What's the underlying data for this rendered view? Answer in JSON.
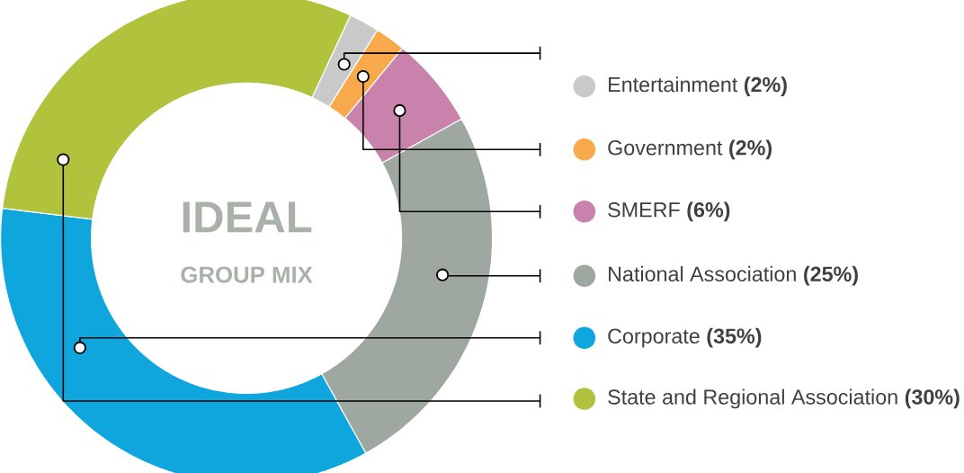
{
  "chart_data": {
    "type": "donut",
    "title": "IDEAL",
    "subtitle": "GROUP MIX",
    "categories": [
      "Entertainment",
      "Government",
      "SMERF",
      "National Association",
      "Corporate",
      "State and Regional Association"
    ],
    "values": [
      2,
      2,
      6,
      25,
      35,
      30
    ],
    "colors": [
      "#c9c9c9",
      "#f8a94b",
      "#c982ab",
      "#9ea7a0",
      "#0ea6dc",
      "#b1c23c"
    ],
    "value_labels": [
      "(2%)",
      "(2%)",
      "(6%)",
      "(25%)",
      "(35%)",
      "(30%)"
    ],
    "legend": "right"
  }
}
